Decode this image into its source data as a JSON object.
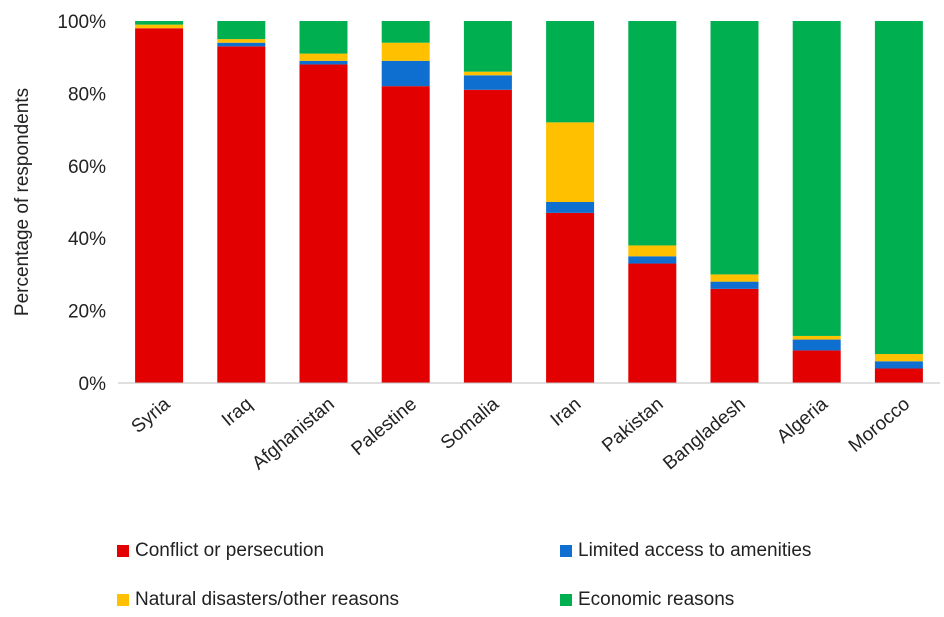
{
  "chart_data": {
    "type": "bar",
    "stacked": true,
    "title": "",
    "xlabel": "",
    "ylabel": "Percentage of respondents",
    "ylim": [
      0,
      100
    ],
    "yticks": [
      "0%",
      "20%",
      "40%",
      "60%",
      "80%",
      "100%"
    ],
    "grid": false,
    "legend_position": "bottom",
    "categories": [
      "Syria",
      "Iraq",
      "Afghanistan",
      "Palestine",
      "Somalia",
      "Iran",
      "Pakistan",
      "Bangladesh",
      "Algeria",
      "Morocco"
    ],
    "series": [
      {
        "name": "Conflict or persecution",
        "color": "#e30000",
        "values": [
          98,
          93,
          88,
          82,
          81,
          47,
          33,
          26,
          9,
          4
        ]
      },
      {
        "name": "Limited access to amenities",
        "color": "#0e6fd1",
        "values": [
          0,
          1,
          1,
          7,
          4,
          3,
          2,
          2,
          3,
          2
        ]
      },
      {
        "name": "Natural disasters/other reasons",
        "color": "#ffc000",
        "values": [
          1,
          1,
          2,
          5,
          1,
          22,
          3,
          2,
          1,
          2
        ]
      },
      {
        "name": "Economic reasons",
        "color": "#00b050",
        "values": [
          1,
          5,
          9,
          6,
          14,
          28,
          62,
          70,
          87,
          92
        ]
      }
    ]
  }
}
